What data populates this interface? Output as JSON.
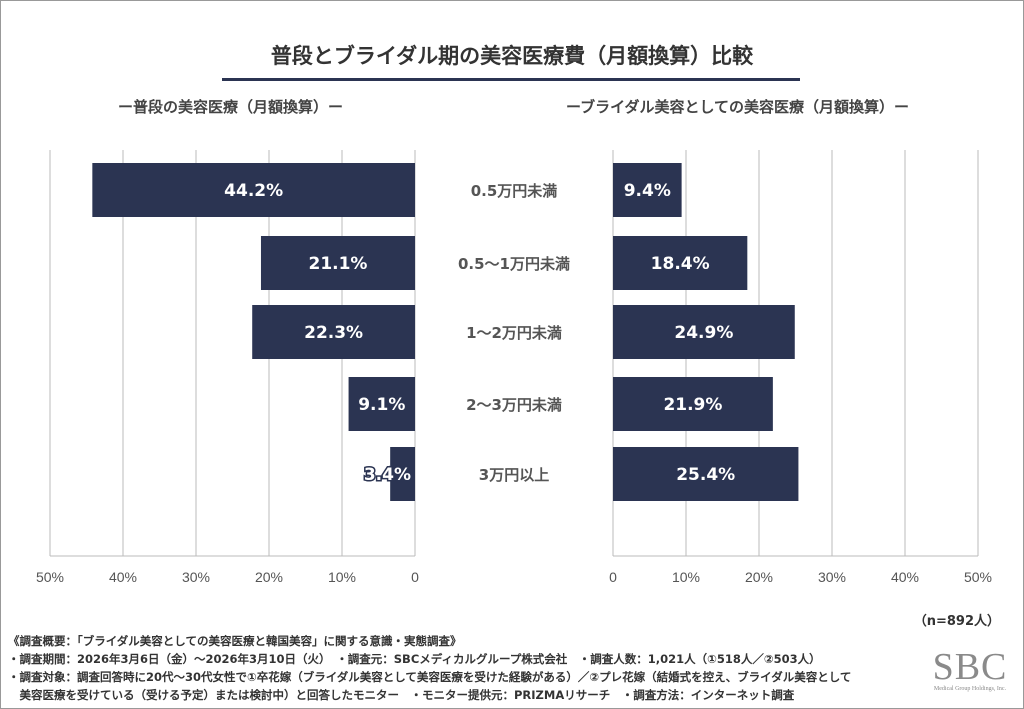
{
  "chart_data": [
    {
      "type": "bar",
      "orientation": "horizontal",
      "direction": "right-to-left",
      "title": "ー普段の美容医療（月額換算）ー",
      "categories": [
        "0.5万円未満",
        "0.5〜1万円未満",
        "1〜2万円未満",
        "2〜3万円未満",
        "3万円以上"
      ],
      "values": [
        44.2,
        21.1,
        22.3,
        9.1,
        3.4
      ],
      "data_labels": [
        "44.2%",
        "21.1%",
        "22.3%",
        "9.1%",
        "3.4%"
      ],
      "xlim": [
        0,
        50
      ],
      "ticks": [
        "0",
        "10%",
        "20%",
        "30%",
        "40%",
        "50%"
      ],
      "grid": true
    },
    {
      "type": "bar",
      "orientation": "horizontal",
      "direction": "left-to-right",
      "title": "ーブライダル美容としての美容医療（月額換算）ー",
      "categories": [
        "0.5万円未満",
        "0.5〜1万円未満",
        "1〜2万円未満",
        "2〜3万円未満",
        "3万円以上"
      ],
      "values": [
        9.4,
        18.4,
        24.9,
        21.9,
        25.4
      ],
      "data_labels": [
        "9.4%",
        "18.4%",
        "24.9%",
        "21.9%",
        "25.4%"
      ],
      "xlim": [
        0,
        50
      ],
      "ticks": [
        "0",
        "10%",
        "20%",
        "30%",
        "40%",
        "50%"
      ],
      "grid": true
    }
  ],
  "title": "普段とブライダル期の美容医療費（月額換算）比較",
  "bar_color": "#2b3452",
  "sample": "（n=892人）",
  "notes": [
    "《調査概要：「ブライダル美容としての美容医療と韓国美容」に関する意識・実態調査》",
    "・調査期間：2026年3月6日（金）〜2026年3月10日（火）　・調査元：SBCメディカルグループ株式会社　・調査人数：1,021人（①518人／②503人）",
    "・調査対象：調査回答時に20代〜30代女性で①卒花嫁（ブライダル美容として美容医療を受けた経験がある）／②プレ花嫁（結婚式を控え、ブライダル美容として",
    "　美容医療を受けている（受ける予定）または検討中）と回答したモニター　・モニター提供元：PRIZMAリサーチ　・調査方法：インターネット調査"
  ],
  "logo": {
    "text": "SBC",
    "tagline": "Medical Group Holdings, Inc."
  }
}
